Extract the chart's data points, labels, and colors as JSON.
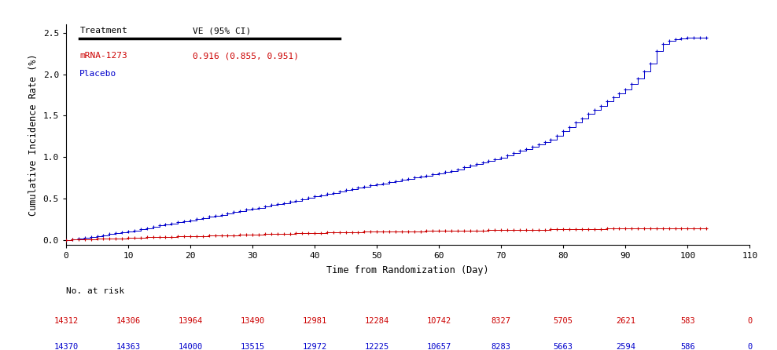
{
  "xlabel": "Time from Randomization (Day)",
  "ylabel": "Cumulative Incidence Rate (%)",
  "xlim": [
    0,
    110
  ],
  "ylim": [
    -0.06,
    2.6
  ],
  "yticks": [
    0.0,
    0.5,
    1.0,
    1.5,
    2.0,
    2.5
  ],
  "xticks": [
    0,
    10,
    20,
    30,
    40,
    50,
    60,
    70,
    80,
    90,
    100,
    110
  ],
  "legend_title": "Treatment",
  "legend_ve_title": "VE (95% CI)",
  "mrna_label": "mRNA-1273",
  "mrna_ve": "0.916 (0.855, 0.951)",
  "placebo_label": "Placebo",
  "mrna_color": "#cc0000",
  "placebo_color": "#0000cc",
  "background_color": "#ffffff",
  "no_at_risk_label": "No. at risk",
  "risk_times": [
    0,
    10,
    20,
    30,
    40,
    50,
    60,
    70,
    80,
    90,
    100,
    110
  ],
  "mrna_risk": [
    14312,
    14306,
    13964,
    13490,
    12981,
    12284,
    10742,
    8327,
    5705,
    2621,
    583,
    0
  ],
  "placebo_risk": [
    14370,
    14363,
    14000,
    13515,
    12972,
    12225,
    10657,
    8283,
    5663,
    2594,
    586,
    0
  ],
  "placebo_x": [
    0,
    1,
    2,
    3,
    4,
    5,
    6,
    7,
    8,
    9,
    10,
    11,
    12,
    13,
    14,
    15,
    16,
    17,
    18,
    19,
    20,
    21,
    22,
    23,
    24,
    25,
    26,
    27,
    28,
    29,
    30,
    31,
    32,
    33,
    34,
    35,
    36,
    37,
    38,
    39,
    40,
    41,
    42,
    43,
    44,
    45,
    46,
    47,
    48,
    49,
    50,
    51,
    52,
    53,
    54,
    55,
    56,
    57,
    58,
    59,
    60,
    61,
    62,
    63,
    64,
    65,
    66,
    67,
    68,
    69,
    70,
    71,
    72,
    73,
    74,
    75,
    76,
    77,
    78,
    79,
    80,
    81,
    82,
    83,
    84,
    85,
    86,
    87,
    88,
    89,
    90,
    91,
    92,
    93,
    94,
    95,
    96,
    97,
    98,
    99,
    100,
    101,
    102,
    103
  ],
  "placebo_y": [
    0.0,
    0.01,
    0.02,
    0.03,
    0.04,
    0.05,
    0.06,
    0.07,
    0.08,
    0.09,
    0.1,
    0.115,
    0.13,
    0.145,
    0.16,
    0.175,
    0.185,
    0.2,
    0.215,
    0.225,
    0.235,
    0.25,
    0.265,
    0.28,
    0.295,
    0.305,
    0.32,
    0.335,
    0.35,
    0.365,
    0.375,
    0.39,
    0.405,
    0.42,
    0.43,
    0.445,
    0.46,
    0.475,
    0.49,
    0.51,
    0.525,
    0.54,
    0.555,
    0.57,
    0.585,
    0.6,
    0.615,
    0.63,
    0.645,
    0.66,
    0.67,
    0.685,
    0.695,
    0.71,
    0.725,
    0.74,
    0.755,
    0.765,
    0.775,
    0.79,
    0.8,
    0.82,
    0.835,
    0.855,
    0.875,
    0.895,
    0.915,
    0.935,
    0.955,
    0.975,
    0.995,
    1.02,
    1.045,
    1.075,
    1.1,
    1.125,
    1.155,
    1.185,
    1.215,
    1.255,
    1.31,
    1.365,
    1.42,
    1.47,
    1.52,
    1.57,
    1.62,
    1.67,
    1.72,
    1.77,
    1.82,
    1.88,
    1.95,
    2.03,
    2.13,
    2.28,
    2.37,
    2.4,
    2.42,
    2.435,
    2.44,
    2.44,
    2.44,
    2.44
  ],
  "mrna_x": [
    0,
    1,
    2,
    3,
    4,
    5,
    6,
    7,
    8,
    9,
    10,
    11,
    12,
    13,
    14,
    15,
    16,
    17,
    18,
    19,
    20,
    21,
    22,
    23,
    24,
    25,
    26,
    27,
    28,
    29,
    30,
    31,
    32,
    33,
    34,
    35,
    36,
    37,
    38,
    39,
    40,
    41,
    42,
    43,
    44,
    45,
    46,
    47,
    48,
    49,
    50,
    51,
    52,
    53,
    54,
    55,
    56,
    57,
    58,
    59,
    60,
    61,
    62,
    63,
    64,
    65,
    66,
    67,
    68,
    69,
    70,
    71,
    72,
    73,
    74,
    75,
    76,
    77,
    78,
    79,
    80,
    81,
    82,
    83,
    84,
    85,
    86,
    87,
    88,
    89,
    90,
    91,
    92,
    93,
    94,
    95,
    96,
    97,
    98,
    99,
    100,
    101,
    102,
    103
  ],
  "mrna_y": [
    0.0,
    0.004,
    0.007,
    0.009,
    0.011,
    0.013,
    0.015,
    0.017,
    0.019,
    0.021,
    0.024,
    0.027,
    0.03,
    0.032,
    0.034,
    0.036,
    0.038,
    0.04,
    0.042,
    0.044,
    0.046,
    0.048,
    0.05,
    0.052,
    0.054,
    0.056,
    0.058,
    0.06,
    0.062,
    0.064,
    0.066,
    0.068,
    0.07,
    0.072,
    0.074,
    0.076,
    0.078,
    0.08,
    0.082,
    0.084,
    0.086,
    0.088,
    0.09,
    0.092,
    0.094,
    0.096,
    0.097,
    0.098,
    0.099,
    0.1,
    0.101,
    0.102,
    0.103,
    0.104,
    0.105,
    0.106,
    0.107,
    0.107,
    0.108,
    0.109,
    0.11,
    0.111,
    0.112,
    0.113,
    0.114,
    0.115,
    0.116,
    0.117,
    0.118,
    0.118,
    0.119,
    0.12,
    0.121,
    0.122,
    0.123,
    0.124,
    0.125,
    0.126,
    0.127,
    0.128,
    0.129,
    0.13,
    0.131,
    0.132,
    0.133,
    0.134,
    0.135,
    0.136,
    0.137,
    0.138,
    0.139,
    0.14,
    0.141,
    0.141,
    0.142,
    0.143,
    0.143,
    0.143,
    0.144,
    0.144,
    0.144,
    0.144,
    0.144,
    0.144
  ]
}
